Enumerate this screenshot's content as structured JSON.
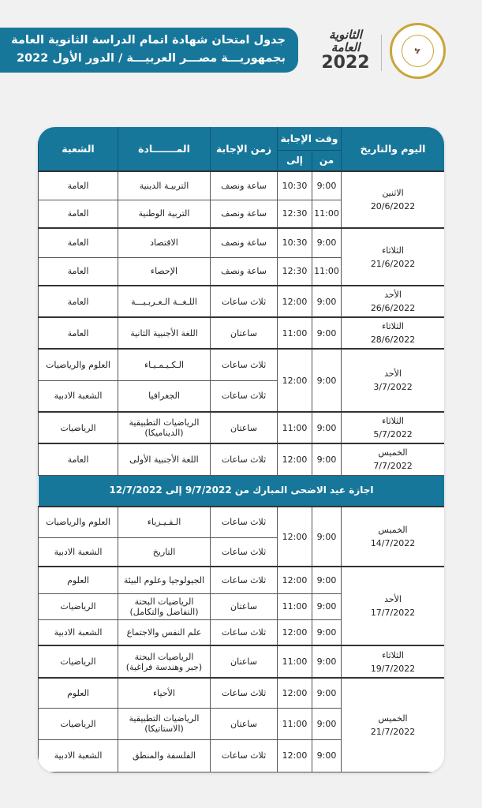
{
  "header": {
    "title_line1": "جدول امتحان شهادة اتمام الدراسة الثانوية العامة",
    "title_line2": "بجمهوريـــة مصـــر العربيـــة / الدور الأول 2022",
    "logo_text": "الثانوية العامة",
    "logo_year": "2022",
    "seal_text": "MINISTRY OF EDUCATION AND TECHNICAL EDUCATION"
  },
  "colors": {
    "accent": "#17779b",
    "background": "#f1f1f1",
    "seal_gold": "#c9a53a"
  },
  "table": {
    "columns": {
      "day_date": "اليوم والتاريخ",
      "answer_time": "وقت الإجابة",
      "from": "من",
      "to": "إلى",
      "duration": "زمن الإجابة",
      "subject": "المـــــــادة",
      "branch": "الشعبة"
    },
    "groups": [
      {
        "day": "الاثنين",
        "date": "20/6/2022",
        "exams": [
          {
            "from": "9:00",
            "to": "10:30",
            "duration": "ساعة ونصف",
            "subject": "التربيـة الدينية",
            "branch": "العامة"
          },
          {
            "from": "11:00",
            "to": "12:30",
            "duration": "ساعة ونصف",
            "subject": "التربية الوطنية",
            "branch": "العامة"
          }
        ]
      },
      {
        "day": "الثلاثاء",
        "date": "21/6/2022",
        "exams": [
          {
            "from": "9:00",
            "to": "10:30",
            "duration": "ساعة ونصف",
            "subject": "الاقتصاد",
            "branch": "العامة"
          },
          {
            "from": "11:00",
            "to": "12:30",
            "duration": "ساعة ونصف",
            "subject": "الإحصاء",
            "branch": "العامة"
          }
        ]
      },
      {
        "day": "الأحد",
        "date": "26/6/2022",
        "exams": [
          {
            "from": "9:00",
            "to": "12:00",
            "duration": "ثلاث ساعات",
            "subject": "اللـغــة الـعـربـيـــة",
            "branch": "العامة"
          }
        ]
      },
      {
        "day": "الثلاثاء",
        "date": "28/6/2022",
        "exams": [
          {
            "from": "9:00",
            "to": "11:00",
            "duration": "ساعتان",
            "subject": "اللغة الأجنبية الثانية",
            "branch": "العامة"
          }
        ]
      },
      {
        "day": "الأحد",
        "date": "3/7/2022",
        "shared_time": true,
        "exams": [
          {
            "from": "9:00",
            "to": "12:00",
            "duration": "ثلاث ساعات",
            "subject": "الـكـيـمـيـاء",
            "branch": "العلوم والرياضيات"
          },
          {
            "duration": "ثلاث ساعات",
            "subject": "الجغرافيا",
            "branch": "الشعبة الادبية"
          }
        ]
      },
      {
        "day": "الثلاثاء",
        "date": "5/7/2022",
        "exams": [
          {
            "from": "9:00",
            "to": "11:00",
            "duration": "ساعتان",
            "subject": "الرياضيات التطبيقية",
            "subject_note": "(الديناميكا)",
            "branch": "الرياضيات"
          }
        ]
      },
      {
        "day": "الخميس",
        "date": "7/7/2022",
        "exams": [
          {
            "from": "9:00",
            "to": "12:00",
            "duration": "ثلاث ساعات",
            "subject": "اللغة الأجنبية الأولى",
            "branch": "العامة"
          }
        ]
      },
      {
        "banner": "اجازة عيد الاضحى المبارك من 9/7/2022 إلى 12/7/2022"
      },
      {
        "day": "الخميس",
        "date": "14/7/2022",
        "shared_time": true,
        "exams": [
          {
            "from": "9:00",
            "to": "12:00",
            "duration": "ثلاث ساعات",
            "subject": "الـفـيـزياء",
            "branch": "العلوم والرياضيات"
          },
          {
            "duration": "ثلاث ساعات",
            "subject": "التاريخ",
            "branch": "الشعبة الادبية"
          }
        ]
      },
      {
        "day": "الأحد",
        "date": "17/7/2022",
        "exams": [
          {
            "from": "9:00",
            "to": "12:00",
            "duration": "ثلاث ساعات",
            "subject": "الجيولوجيا وعلوم البيئة",
            "branch": "العلوم"
          },
          {
            "from": "9:00",
            "to": "11:00",
            "duration": "ساعتان",
            "subject": "الرياضيات البحتة",
            "subject_note": "(التفاضل والتكامل)",
            "branch": "الرياضيات"
          },
          {
            "from": "9:00",
            "to": "12:00",
            "duration": "ثلاث ساعات",
            "subject": "علم النفس والاجتماع",
            "branch": "الشعبة الادبية"
          }
        ]
      },
      {
        "day": "الثلاثاء",
        "date": "19/7/2022",
        "exams": [
          {
            "from": "9:00",
            "to": "11:00",
            "duration": "ساعتان",
            "subject": "الرياضيات البحتة",
            "subject_note": "(جبر وهندسة فراغية)",
            "branch": "الرياضيات"
          }
        ]
      },
      {
        "day": "الخميس",
        "date": "21/7/2022",
        "exams": [
          {
            "from": "9:00",
            "to": "12:00",
            "duration": "ثلاث ساعات",
            "subject": "الأحياء",
            "branch": "العلوم"
          },
          {
            "from": "9:00",
            "to": "11:00",
            "duration": "ساعتان",
            "subject": "الرياضيات التطبيقية",
            "subject_note": "(الاستاتيكا)",
            "branch": "الرياضيات"
          },
          {
            "from": "9:00",
            "to": "12:00",
            "duration": "ثلاث ساعات",
            "subject": "الفلسفة والمنطق",
            "branch": "الشعبة الادبية"
          }
        ]
      }
    ]
  }
}
